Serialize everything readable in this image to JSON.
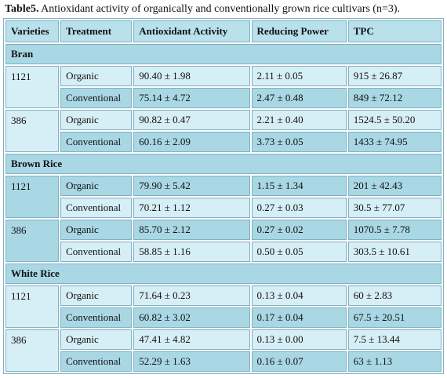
{
  "caption": {
    "label": "Table5.",
    "text": " Antioxidant activity of organically and conventionally grown rice cultivars (n=3)."
  },
  "headers": [
    "Varieties",
    "Treatment",
    "Antioxidant Activity",
    "Reducing Power",
    "TPC"
  ],
  "sections": [
    {
      "name": "Bran",
      "varieties": [
        {
          "name": "1121",
          "rows": [
            {
              "treatment": "Organic",
              "aa": "90.40 ± 1.98",
              "rp": "2.11 ± 0.05",
              "tpc": "915 ± 26.87"
            },
            {
              "treatment": "Conventional",
              "aa": "75.14 ± 4.72",
              "rp": "2.47 ± 0.48",
              "tpc": "849 ± 72.12"
            }
          ]
        },
        {
          "name": "386",
          "rows": [
            {
              "treatment": "Organic",
              "aa": "90.82 ± 0.47",
              "rp": "2.21 ± 0.40",
              "tpc": "1524.5 ± 50.20"
            },
            {
              "treatment": "Conventional",
              "aa": "60.16 ± 2.09",
              "rp": "3.73 ± 0.05",
              "tpc": "1433 ± 74.95"
            }
          ]
        }
      ]
    },
    {
      "name": "Brown Rice",
      "varieties": [
        {
          "name": "1121",
          "rows": [
            {
              "treatment": "Organic",
              "aa": "79.90 ± 5.42",
              "rp": "1.15 ± 1.34",
              "tpc": "201 ± 42.43"
            },
            {
              "treatment": "Conventional",
              "aa": "70.21 ± 1.12",
              "rp": "0.27 ± 0.03",
              "tpc": "30.5 ± 77.07"
            }
          ]
        },
        {
          "name": "386",
          "rows": [
            {
              "treatment": "Organic",
              "aa": "85.70 ± 2.12",
              "rp": "0.27 ± 0.02",
              "tpc": "1070.5 ± 7.78"
            },
            {
              "treatment": "Conventional",
              "aa": "58.85 ± 1.16",
              "rp": "0.50 ± 0.05",
              "tpc": "303.5 ± 10.61"
            }
          ]
        }
      ]
    },
    {
      "name": "White Rice",
      "varieties": [
        {
          "name": "1121",
          "rows": [
            {
              "treatment": "Organic",
              "aa": "71.64 ± 0.23",
              "rp": "0.13 ± 0.04",
              "tpc": "60 ± 2.83"
            },
            {
              "treatment": "Conventional",
              "aa": "60.82 ± 3.02",
              "rp": "0.17 ± 0.04",
              "tpc": "67.5 ± 20.51"
            }
          ]
        },
        {
          "name": "386",
          "rows": [
            {
              "treatment": "Organic",
              "aa": "47.41 ± 4.82",
              "rp": "0.13 ± 0.00",
              "tpc": "7.5 ± 13.44"
            },
            {
              "treatment": "Conventional",
              "aa": "52.29 ± 1.63",
              "rp": "0.16 ± 0.07",
              "tpc": "63 ± 1.13"
            }
          ]
        }
      ]
    }
  ]
}
